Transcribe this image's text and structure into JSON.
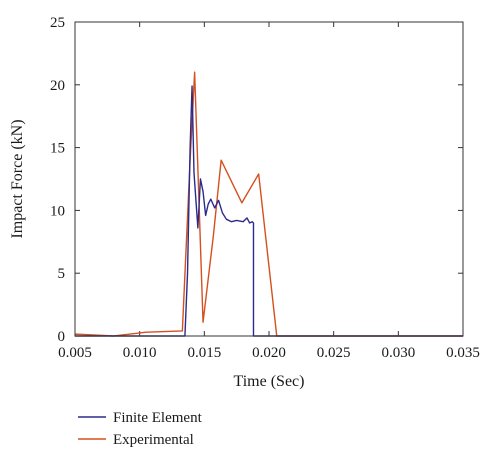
{
  "chart_data": {
    "type": "line",
    "title": "",
    "xlabel": "Time (Sec)",
    "ylabel": "Impact Force (kN)",
    "xlim": [
      0.005,
      0.035
    ],
    "ylim": [
      0,
      25
    ],
    "xticks": [
      "0.005",
      "0.010",
      "0.015",
      "0.020",
      "0.025",
      "0.030",
      "0.035"
    ],
    "yticks": [
      "0",
      "5",
      "10",
      "15",
      "20",
      "25"
    ],
    "grid": false,
    "legend_position": "bottom-left",
    "series": [
      {
        "name": "Finite Element",
        "color": "#2b2b8c",
        "x": [
          0.005,
          0.0135,
          0.0137,
          0.0139,
          0.01405,
          0.0142,
          0.0145,
          0.0147,
          0.0149,
          0.0151,
          0.0153,
          0.0155,
          0.0158,
          0.0161,
          0.0164,
          0.0167,
          0.0171,
          0.0175,
          0.018,
          0.0183,
          0.0185,
          0.0187,
          0.0188,
          0.0188,
          0.035
        ],
        "y": [
          0,
          0,
          5,
          15,
          19.9,
          13,
          8.6,
          12.5,
          11.5,
          9.6,
          10.5,
          10.9,
          10.2,
          10.8,
          9.8,
          9.3,
          9.1,
          9.2,
          9.1,
          9.4,
          9.0,
          9.1,
          9.0,
          0,
          0
        ]
      },
      {
        "name": "Experimental",
        "color": "#d4501f",
        "x": [
          0.005,
          0.008,
          0.0105,
          0.0133,
          0.0139,
          0.01425,
          0.0149,
          0.0157,
          0.0163,
          0.0179,
          0.0192,
          0.0206,
          0.035
        ],
        "y": [
          0.15,
          0,
          0.3,
          0.4,
          14.0,
          21.0,
          1.1,
          8.0,
          14.0,
          10.6,
          12.9,
          0,
          0
        ]
      }
    ]
  }
}
